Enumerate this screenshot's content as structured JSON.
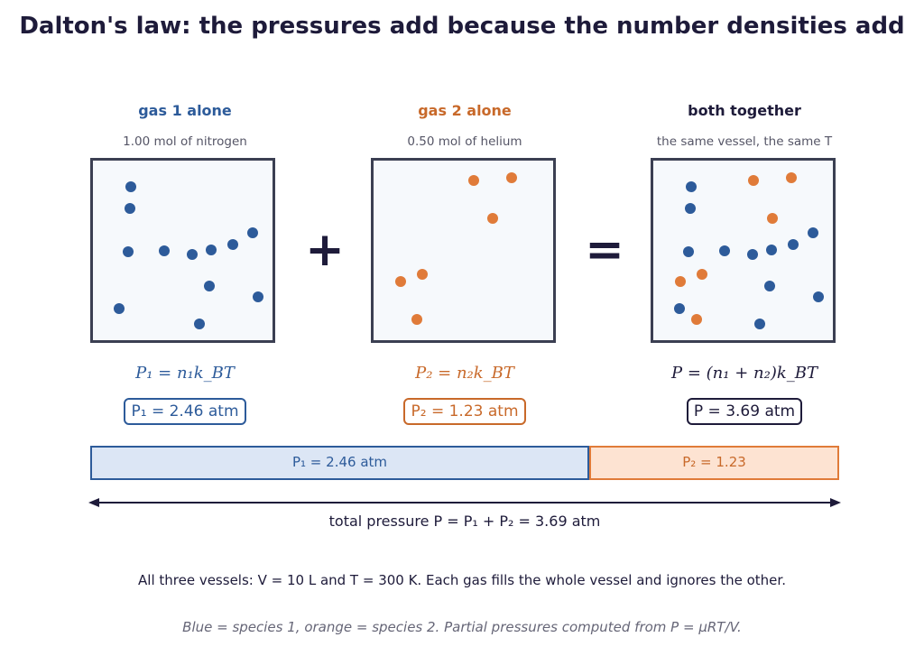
{
  "title": "Dalton's law: the pressures add because the number densities add",
  "columns": {
    "gas1": {
      "heading": "gas 1 alone",
      "subtitle": "1.00 mol of nitrogen",
      "formula": "P₁ = n₁k_BT",
      "value": "P₁ = 2.46 atm"
    },
    "gas2": {
      "heading": "gas 2 alone",
      "subtitle": "0.50 mol of helium",
      "formula": "P₂ = n₂k_BT",
      "value": "P₂ = 1.23 atm"
    },
    "both": {
      "heading": "both together",
      "subtitle": "the same vessel, the same T",
      "formula": "P = (n₁ + n₂)k_BT",
      "value": "P = 3.69 atm"
    }
  },
  "operators": {
    "plus": "+",
    "equals": "="
  },
  "bar": {
    "segment1_label": "P₁ = 2.46 atm",
    "segment2_label": "P₂ = 1.23",
    "p1": 2.46,
    "p2": 1.23
  },
  "total_label": "total pressure  P = P₁ + P₂ = 3.69 atm",
  "footer": "All three vessels: V = 10 L and T = 300 K. Each gas fills the whole vessel and ignores the other.",
  "caption": "Blue = species 1, orange = species 2. Partial pressures computed from P = μRT/V.",
  "colors": {
    "species1": "#2d5b9a",
    "species2": "#e07b39",
    "dark": "#1e1b3a",
    "bar1_fill": "#dce6f5",
    "bar2_fill": "#fde3d2"
  }
}
